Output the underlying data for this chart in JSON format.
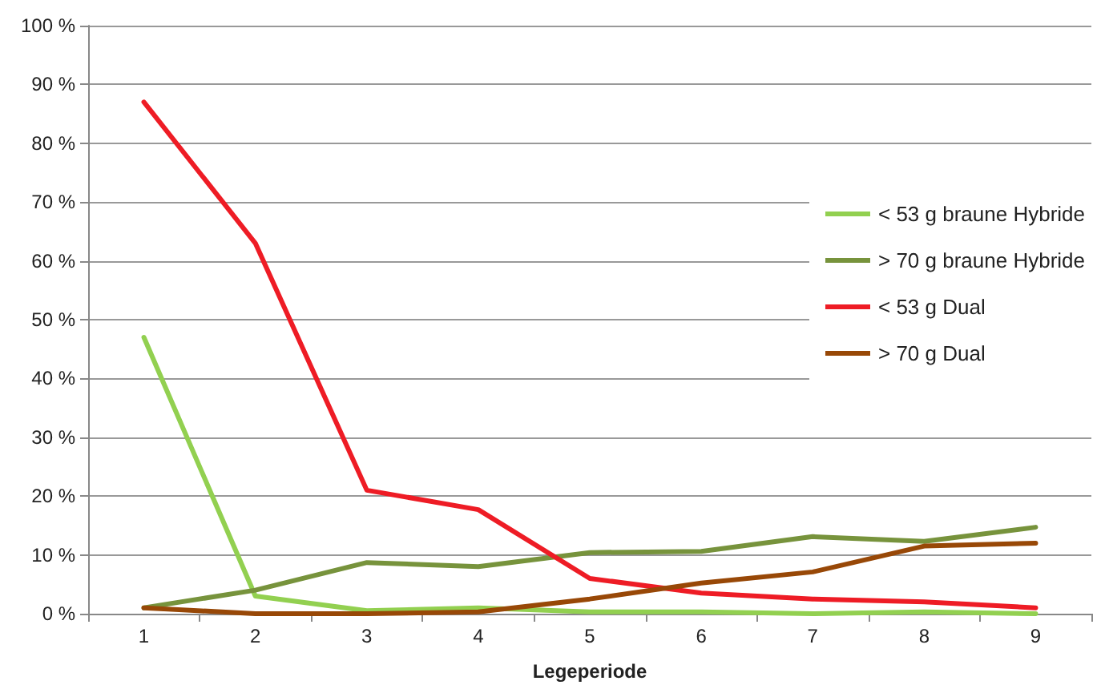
{
  "chart_data": {
    "type": "line",
    "xlabel": "Legeperiode",
    "categories": [
      "1",
      "2",
      "3",
      "4",
      "5",
      "6",
      "7",
      "8",
      "9"
    ],
    "series": [
      {
        "name": "< 53 g braune Hybride",
        "color": "#92d050",
        "values": [
          47,
          3,
          0.5,
          1,
          0.3,
          0.3,
          0,
          0.3,
          0
        ]
      },
      {
        "name": "> 70 g braune Hybride",
        "color": "#77933c",
        "values": [
          1,
          4,
          8.7,
          8,
          10.4,
          10.6,
          13.1,
          12.3,
          14.7
        ]
      },
      {
        "name": "< 53 g Dual",
        "color": "#ee1c25",
        "values": [
          87,
          63,
          21,
          17.7,
          6,
          3.5,
          2.5,
          2,
          1
        ]
      },
      {
        "name": "> 70 g Dual",
        "color": "#984807",
        "values": [
          1,
          0,
          0,
          0.3,
          2.5,
          5.2,
          7.1,
          11.5,
          12
        ]
      }
    ],
    "ylim": [
      0,
      100
    ],
    "yticks": [
      {
        "value": 0,
        "label": "0 %"
      },
      {
        "value": 10,
        "label": "10 %"
      },
      {
        "value": 20,
        "label": "20 %"
      },
      {
        "value": 30,
        "label": "30 %"
      },
      {
        "value": 40,
        "label": "40 %"
      },
      {
        "value": 50,
        "label": "50 %"
      },
      {
        "value": 60,
        "label": "60 %"
      },
      {
        "value": 70,
        "label": "70 %"
      },
      {
        "value": 80,
        "label": "80 %"
      },
      {
        "value": 90,
        "label": "90 %"
      },
      {
        "value": 100,
        "label": "100 %"
      }
    ],
    "grid": "y",
    "legend": "right",
    "marker": "none",
    "line_style": "solid"
  }
}
